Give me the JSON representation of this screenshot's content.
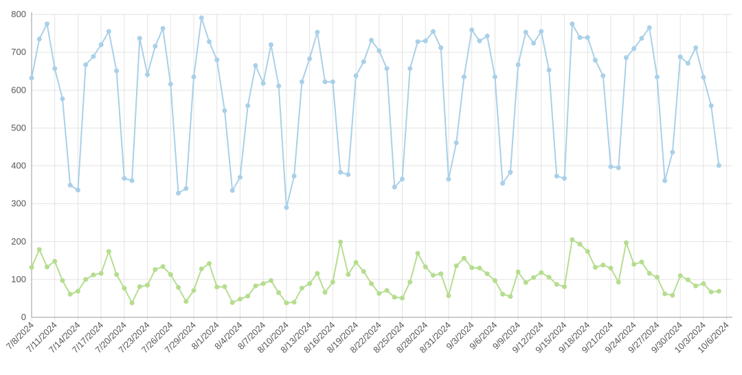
{
  "chart_data": {
    "type": "line",
    "x": [
      "7/8/2024",
      "7/9/2024",
      "7/10/2024",
      "7/11/2024",
      "7/12/2024",
      "7/13/2024",
      "7/14/2024",
      "7/15/2024",
      "7/16/2024",
      "7/17/2024",
      "7/18/2024",
      "7/19/2024",
      "7/20/2024",
      "7/21/2024",
      "7/22/2024",
      "7/23/2024",
      "7/24/2024",
      "7/25/2024",
      "7/26/2024",
      "7/27/2024",
      "7/28/2024",
      "7/29/2024",
      "7/30/2024",
      "7/31/2024",
      "8/1/2024",
      "8/2/2024",
      "8/3/2024",
      "8/4/2024",
      "8/5/2024",
      "8/6/2024",
      "8/7/2024",
      "8/8/2024",
      "8/9/2024",
      "8/10/2024",
      "8/11/2024",
      "8/12/2024",
      "8/13/2024",
      "8/14/2024",
      "8/15/2024",
      "8/16/2024",
      "8/17/2024",
      "8/18/2024",
      "8/19/2024",
      "8/20/2024",
      "8/21/2024",
      "8/22/2024",
      "8/23/2024",
      "8/24/2024",
      "8/25/2024",
      "8/26/2024",
      "8/27/2024",
      "8/28/2024",
      "8/29/2024",
      "8/30/2024",
      "8/31/2024",
      "9/1/2024",
      "9/2/2024",
      "9/3/2024",
      "9/4/2024",
      "9/5/2024",
      "9/6/2024",
      "9/7/2024",
      "9/8/2024",
      "9/9/2024",
      "9/10/2024",
      "9/11/2024",
      "9/12/2024",
      "9/13/2024",
      "9/14/2024",
      "9/15/2024",
      "9/16/2024",
      "9/17/2024",
      "9/18/2024",
      "9/19/2024",
      "9/20/2024",
      "9/21/2024",
      "9/22/2024",
      "9/23/2024",
      "9/24/2024",
      "9/25/2024",
      "9/26/2024",
      "9/27/2024",
      "9/28/2024",
      "9/29/2024",
      "9/30/2024",
      "10/1/2024",
      "10/2/2024",
      "10/3/2024",
      "10/4/2024",
      "10/5/2024"
    ],
    "series": [
      {
        "color": "#a9d0e8",
        "values": [
          632,
          735,
          775,
          657,
          577,
          349,
          336,
          667,
          689,
          720,
          755,
          651,
          367,
          361,
          737,
          641,
          716,
          763,
          616,
          328,
          340,
          635,
          791,
          728,
          680,
          546,
          335,
          370,
          559,
          665,
          618,
          720,
          611,
          290,
          373,
          622,
          683,
          753,
          622,
          622,
          383,
          377,
          638,
          675,
          732,
          704,
          657,
          344,
          365,
          657,
          728,
          730,
          755,
          712,
          365,
          461,
          635,
          759,
          730,
          743,
          635,
          354,
          383,
          667,
          753,
          724,
          755,
          653,
          373,
          367,
          775,
          739,
          739,
          679,
          638,
          398,
          395,
          686,
          710,
          737,
          765,
          635,
          361,
          436,
          688,
          671,
          712,
          634,
          559,
          401
        ]
      },
      {
        "color": "#b5dd8f",
        "values": [
          132,
          179,
          133,
          148,
          97,
          61,
          69,
          100,
          112,
          116,
          174,
          113,
          77,
          38,
          81,
          85,
          126,
          134,
          113,
          79,
          42,
          71,
          128,
          142,
          80,
          81,
          39,
          48,
          56,
          83,
          89,
          97,
          65,
          38,
          40,
          77,
          89,
          116,
          66,
          93,
          199,
          113,
          145,
          121,
          89,
          63,
          71,
          53,
          51,
          93,
          169,
          133,
          111,
          115,
          57,
          136,
          156,
          131,
          130,
          115,
          97,
          61,
          55,
          120,
          92,
          105,
          118,
          106,
          87,
          81,
          205,
          193,
          174,
          132,
          138,
          130,
          93,
          197,
          140,
          146,
          116,
          106,
          62,
          58,
          110,
          99,
          83,
          89,
          67,
          69
        ]
      }
    ],
    "xticks": [
      "7/8/2024",
      "7/11/2024",
      "7/14/2024",
      "7/17/2024",
      "7/20/2024",
      "7/23/2024",
      "7/26/2024",
      "7/29/2024",
      "8/1/2024",
      "8/4/2024",
      "8/7/2024",
      "8/10/2024",
      "8/13/2024",
      "8/16/2024",
      "8/19/2024",
      "8/22/2024",
      "8/25/2024",
      "8/28/2024",
      "8/31/2024",
      "9/3/2024",
      "9/6/2024",
      "9/9/2024",
      "9/12/2024",
      "9/15/2024",
      "9/18/2024",
      "9/21/2024",
      "9/24/2024",
      "9/27/2024",
      "9/30/2024",
      "10/3/2024",
      "10/6/2024"
    ],
    "ylim": [
      0,
      800
    ],
    "yticks": [
      0,
      100,
      200,
      300,
      400,
      500,
      600,
      700,
      800
    ],
    "grid": true
  }
}
